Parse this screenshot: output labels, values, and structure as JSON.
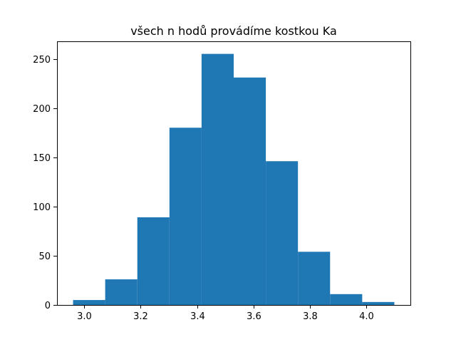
{
  "chart_data": {
    "type": "bar",
    "title": "všech n hodů provádíme kostkou Ka",
    "xlabel": "",
    "ylabel": "",
    "bar_color": "#1f77b4",
    "bins": [
      {
        "x0": 2.96,
        "x1": 3.074,
        "count": 5
      },
      {
        "x0": 3.074,
        "x1": 3.188,
        "count": 26
      },
      {
        "x0": 3.188,
        "x1": 3.302,
        "count": 89
      },
      {
        "x0": 3.302,
        "x1": 3.416,
        "count": 180
      },
      {
        "x0": 3.416,
        "x1": 3.53,
        "count": 255
      },
      {
        "x0": 3.53,
        "x1": 3.644,
        "count": 231
      },
      {
        "x0": 3.644,
        "x1": 3.758,
        "count": 146
      },
      {
        "x0": 3.758,
        "x1": 3.872,
        "count": 54
      },
      {
        "x0": 3.872,
        "x1": 3.986,
        "count": 11
      },
      {
        "x0": 3.986,
        "x1": 4.1,
        "count": 3
      }
    ],
    "xlim": [
      2.903,
      4.157
    ],
    "ylim": [
      0,
      267.75
    ],
    "xticks": [
      3.0,
      3.2,
      3.4,
      3.6,
      3.8,
      4.0
    ],
    "xtick_labels": [
      "3.0",
      "3.2",
      "3.4",
      "3.6",
      "3.8",
      "4.0"
    ],
    "yticks": [
      0,
      50,
      100,
      150,
      200,
      250
    ],
    "ytick_labels": [
      "0",
      "50",
      "100",
      "150",
      "200",
      "250"
    ],
    "grid": false,
    "legend": "none"
  }
}
